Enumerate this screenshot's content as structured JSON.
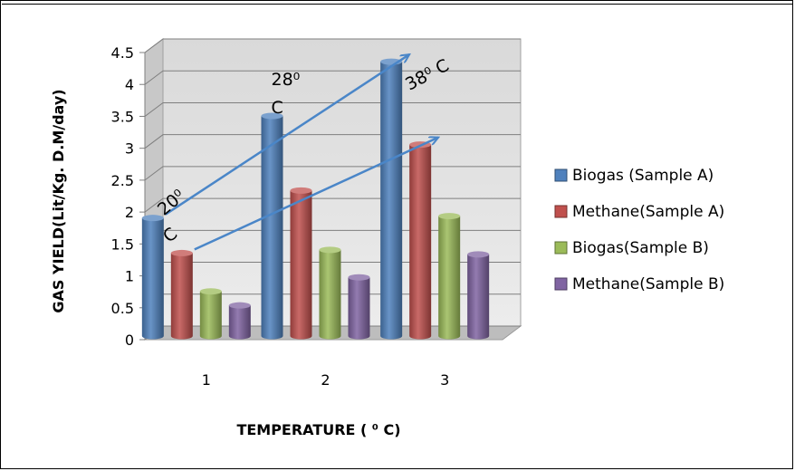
{
  "chart_data": {
    "type": "bar",
    "style": "3d-cylinder",
    "categories": [
      "1",
      "2",
      "3"
    ],
    "series": [
      {
        "name": "Biogas (Sample A)",
        "values": [
          1.85,
          3.45,
          4.3
        ],
        "color": "#4F81BD"
      },
      {
        "name": "Methane(Sample A)",
        "values": [
          1.3,
          2.28,
          3.0
        ],
        "color": "#C0504D"
      },
      {
        "name": "Biogas(Sample B)",
        "values": [
          0.7,
          1.35,
          1.88
        ],
        "color": "#9BBB59"
      },
      {
        "name": "Methane(Sample B)",
        "values": [
          0.48,
          0.92,
          1.28
        ],
        "color": "#8064A2"
      }
    ],
    "title": "",
    "xlabel": "TEMPERATURE ( ⁰ C)",
    "ylabel": "GAS YIELD(Lit/Kg. D.M/day)",
    "ylim": [
      0,
      4.5
    ],
    "yticks": [
      "0",
      "0.5",
      "1",
      "1.5",
      "2",
      "2.5",
      "3",
      "3.5",
      "4",
      "4.5"
    ],
    "grid": true,
    "legend": "right",
    "annotations": [
      {
        "text": "20⁰",
        "sub": "C",
        "category": "1"
      },
      {
        "text": "28⁰",
        "sub": "C",
        "category": "2"
      },
      {
        "text": "38⁰ C",
        "sub": "",
        "category": "3"
      }
    ],
    "trend_arrows": [
      {
        "series": "Biogas (Sample A)",
        "from": "1",
        "to": "3"
      },
      {
        "series": "Methane(Sample A)",
        "from": "1",
        "to": "3"
      }
    ],
    "arrow_color": "#4A86C8"
  }
}
